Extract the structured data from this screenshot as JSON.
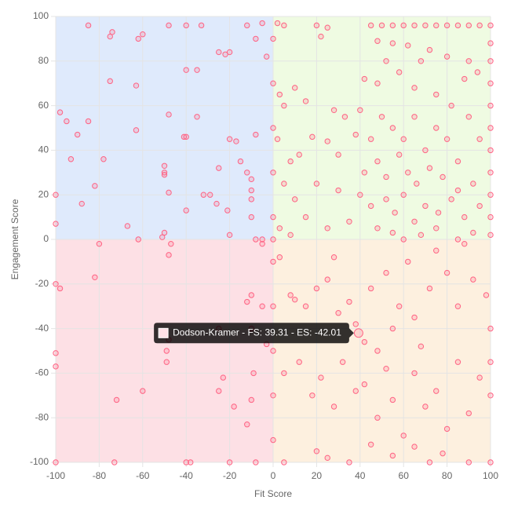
{
  "chart_data": {
    "type": "scatter",
    "x_label": "Fit Score",
    "y_label": "Engagement Score",
    "xlim": [
      -100,
      100
    ],
    "ylim": [
      -100,
      100
    ],
    "xticks": [
      -100,
      -80,
      -60,
      -40,
      -20,
      0,
      20,
      40,
      60,
      80,
      100
    ],
    "yticks": [
      -100,
      -80,
      -60,
      -40,
      -20,
      0,
      20,
      40,
      60,
      80,
      100
    ],
    "grid": true,
    "quadrant_colors": {
      "top_left": "#dfeafc",
      "top_right": "#effbe2",
      "bottom_left": "#fde0e5",
      "bottom_right": "#fdf0df"
    },
    "series": [
      {
        "color": "#ff6384",
        "x": [
          -85,
          -75,
          -74,
          -62,
          -60,
          -48,
          -40,
          -33,
          -25,
          -22,
          -20,
          -12,
          -8,
          -5,
          -3,
          -75,
          -63,
          -40,
          -35,
          -98,
          -95,
          -85,
          -90,
          -63,
          -40,
          -41,
          -48,
          -35,
          -20,
          -17,
          -8,
          -93,
          -78,
          -50,
          -50,
          -50,
          -25,
          -15,
          -12,
          -10,
          -10,
          -100,
          -82,
          -88,
          -48,
          -32,
          -29,
          -26,
          -21,
          -10,
          -10,
          -40,
          -67,
          -62,
          -50,
          -51,
          -20,
          -5,
          -8,
          -100
        ],
        "values": [
          96,
          91,
          93,
          90,
          92,
          96,
          96,
          96,
          84,
          83,
          84,
          96,
          90,
          97,
          82,
          71,
          69,
          76,
          76,
          57,
          53,
          53,
          47,
          49,
          46,
          46,
          56,
          55,
          45,
          44,
          47,
          36,
          36,
          33,
          30,
          29,
          32,
          35,
          30,
          27,
          22,
          20,
          24,
          16,
          21,
          20,
          20,
          16,
          13,
          18,
          10,
          13,
          6,
          0,
          3,
          1,
          2,
          0,
          0,
          7
        ]
      },
      {
        "color": "#ff6384",
        "x": [
          2,
          5,
          20,
          22,
          25,
          45,
          50,
          55,
          60,
          65,
          70,
          75,
          80,
          85,
          90,
          95,
          100,
          100,
          100,
          100,
          100,
          100,
          100,
          100,
          100,
          100,
          100,
          48,
          55,
          62,
          68,
          72,
          80,
          90,
          52,
          42,
          48,
          58,
          65,
          75,
          82,
          88,
          94,
          3,
          5,
          10,
          15,
          28,
          33,
          40,
          45,
          50,
          55,
          60,
          65,
          70,
          75,
          80,
          85,
          90,
          95,
          2,
          8,
          12,
          18,
          25,
          30,
          38,
          42,
          48,
          52,
          58,
          62,
          66,
          72,
          78,
          85,
          92,
          5,
          10,
          20,
          30,
          40,
          45,
          52,
          56,
          60,
          65,
          70,
          76,
          82,
          88,
          95,
          3,
          8,
          15,
          25,
          35,
          48,
          55,
          60,
          68,
          75,
          85,
          92,
          0,
          0,
          0,
          0,
          0,
          0
        ],
        "values": [
          97,
          96,
          96,
          91,
          95,
          96,
          96,
          96,
          96,
          96,
          96,
          96,
          96,
          96,
          96,
          96,
          96,
          88,
          80,
          70,
          60,
          50,
          40,
          30,
          20,
          10,
          2,
          89,
          88,
          87,
          80,
          85,
          82,
          80,
          80,
          72,
          70,
          75,
          68,
          65,
          60,
          72,
          75,
          65,
          60,
          68,
          62,
          58,
          55,
          58,
          45,
          55,
          50,
          45,
          55,
          40,
          50,
          45,
          35,
          55,
          45,
          45,
          35,
          38,
          46,
          44,
          38,
          47,
          30,
          35,
          28,
          38,
          30,
          25,
          32,
          28,
          22,
          25,
          25,
          18,
          25,
          22,
          20,
          15,
          18,
          12,
          20,
          8,
          15,
          12,
          18,
          10,
          15,
          5,
          2,
          10,
          5,
          8,
          5,
          3,
          0,
          2,
          5,
          0,
          3,
          90,
          70,
          50,
          30,
          10,
          0
        ]
      },
      {
        "color": "#ff6384",
        "x": [
          -100,
          -100,
          -100,
          -100,
          -98,
          -82,
          -80,
          -72,
          -73,
          -49,
          -49,
          -48,
          -47,
          -38,
          -40,
          -25,
          -25,
          -23,
          -20,
          -18,
          -12,
          -10,
          -10,
          -10,
          -9,
          -8,
          -5,
          -3,
          -5,
          -12,
          -60,
          -48,
          0,
          0,
          0,
          0,
          0
        ],
        "values": [
          -100,
          -57,
          -51,
          -20,
          -22,
          -17,
          -2,
          -72,
          -100,
          -55,
          -50,
          -7,
          -2,
          -100,
          -100,
          -68,
          -40,
          -62,
          -100,
          -75,
          -83,
          -72,
          -25,
          -40,
          -60,
          -100,
          -30,
          -47,
          -2,
          -28,
          -68,
          -45,
          -10,
          -30,
          -50,
          -70,
          -90
        ]
      },
      {
        "color": "#ff6384",
        "x": [
          3,
          8,
          10,
          15,
          20,
          25,
          28,
          30,
          35,
          38,
          42,
          45,
          48,
          52,
          55,
          58,
          62,
          65,
          68,
          72,
          75,
          80,
          85,
          88,
          92,
          98,
          100,
          5,
          12,
          18,
          22,
          28,
          32,
          38,
          42,
          48,
          52,
          55,
          60,
          65,
          70,
          75,
          80,
          85,
          90,
          95,
          100,
          5,
          20,
          25,
          35,
          45,
          55,
          65,
          72,
          78,
          90,
          100,
          100
        ],
        "values": [
          -8,
          -25,
          -27,
          -30,
          -22,
          -18,
          -8,
          -33,
          -28,
          -38,
          -46,
          -22,
          -50,
          -15,
          -40,
          -30,
          -10,
          -35,
          -48,
          -22,
          -5,
          -15,
          -30,
          -2,
          -18,
          -25,
          -40,
          -60,
          -55,
          -70,
          -62,
          -75,
          -55,
          -68,
          -65,
          -80,
          -58,
          -72,
          -88,
          -60,
          -75,
          -68,
          -85,
          -55,
          -78,
          -62,
          -100,
          -100,
          -95,
          -98,
          -100,
          -92,
          -97,
          -93,
          -100,
          -96,
          -100,
          -70,
          -55
        ]
      }
    ],
    "tooltip": {
      "text": "Dodson-Kramer - FS: 39.31 - ES: -42.01",
      "x": 39.31,
      "y": -42.01,
      "color": "#ff6384"
    }
  }
}
